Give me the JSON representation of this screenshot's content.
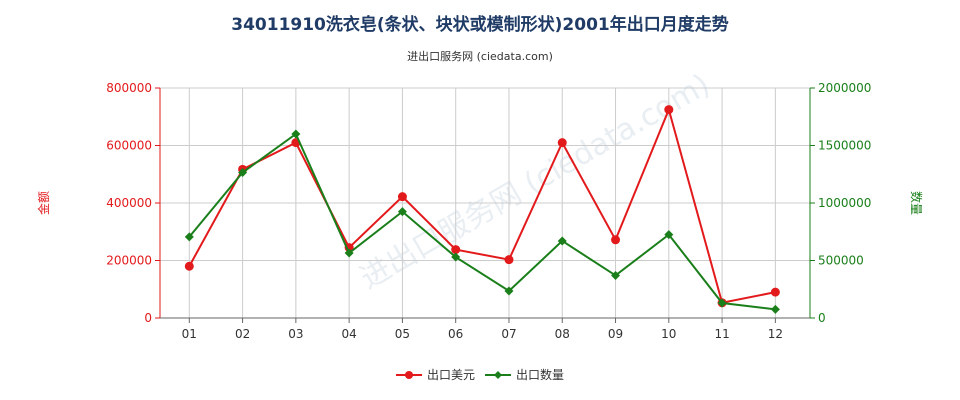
{
  "title": "34011910洗衣皂(条状、块状或模制形状)2001年出口月度走势",
  "subtitle": "进出口服务网 (ciedata.com)",
  "watermark": "进出口服务网 (ciedata.com)",
  "colors": {
    "amount": "#e31a1c",
    "quantity": "#1a7f1a",
    "title": "#1f3b66",
    "grid": "#cccccc"
  },
  "chart_data": {
    "type": "line",
    "categories": [
      "01",
      "02",
      "03",
      "04",
      "05",
      "06",
      "07",
      "08",
      "09",
      "10",
      "11",
      "12"
    ],
    "left_axis": {
      "label": "金额",
      "ylim": [
        0,
        800000
      ],
      "ticks": [
        "0",
        "200000",
        "400000",
        "600000",
        "800000"
      ]
    },
    "right_axis": {
      "label": "数量",
      "ylim": [
        0,
        2000000
      ],
      "ticks": [
        "0",
        "500000",
        "1000000",
        "1500000",
        "2000000"
      ]
    },
    "series": [
      {
        "name": "出口美元",
        "axis": "left",
        "values": [
          180000,
          517000,
          610000,
          245000,
          422000,
          238000,
          203000,
          610000,
          272000,
          725000,
          53000,
          90000
        ]
      },
      {
        "name": "出口数量",
        "axis": "right",
        "values": [
          705000,
          1265000,
          1600000,
          565000,
          925000,
          530000,
          235000,
          670000,
          370000,
          725000,
          130000,
          75000
        ]
      }
    ],
    "grid": true,
    "legend_position": "bottom-center"
  }
}
